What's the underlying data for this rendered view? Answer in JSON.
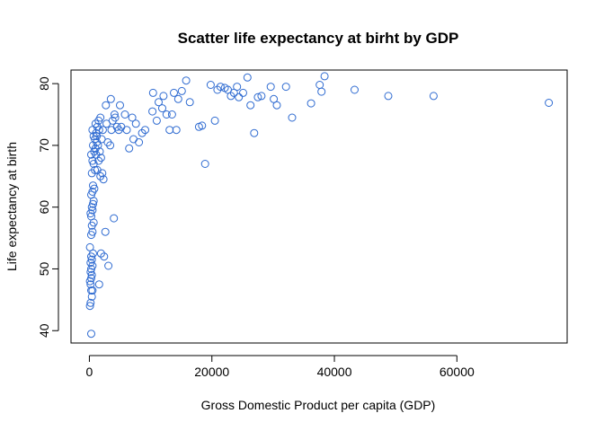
{
  "colors": {
    "point": "#2f6bd1",
    "axis": "#000000",
    "background": "#ffffff"
  },
  "chart_data": {
    "type": "scatter",
    "title": "Scatter life expectancy at birht by GDP",
    "xlabel": "Gross Domestic Product per capita (GDP)",
    "ylabel": "Life expectancy at birth",
    "xlim": [
      -3000,
      78000
    ],
    "ylim": [
      38,
      82.2
    ],
    "xticks": [
      0,
      20000,
      40000,
      60000
    ],
    "yticks": [
      40,
      50,
      60,
      70,
      80
    ],
    "grid": false,
    "legend": "none",
    "marker": "open-circle",
    "points": [
      [
        300,
        39.5
      ],
      [
        100,
        44
      ],
      [
        200,
        44.5
      ],
      [
        400,
        45.5
      ],
      [
        300,
        46.5
      ],
      [
        500,
        46.5
      ],
      [
        200,
        47.5
      ],
      [
        100,
        48
      ],
      [
        300,
        48.5
      ],
      [
        400,
        49
      ],
      [
        200,
        49.5
      ],
      [
        300,
        50
      ],
      [
        500,
        50.5
      ],
      [
        200,
        51
      ],
      [
        400,
        51.5
      ],
      [
        300,
        52
      ],
      [
        600,
        52.5
      ],
      [
        100,
        53.5
      ],
      [
        300,
        55.5
      ],
      [
        500,
        56
      ],
      [
        400,
        57
      ],
      [
        700,
        57.5
      ],
      [
        300,
        58.5
      ],
      [
        200,
        59
      ],
      [
        500,
        59.5
      ],
      [
        400,
        60
      ],
      [
        600,
        60.5
      ],
      [
        700,
        61
      ],
      [
        300,
        62
      ],
      [
        500,
        62.5
      ],
      [
        800,
        63
      ],
      [
        600,
        63.5
      ],
      [
        400,
        65.5
      ],
      [
        900,
        66
      ],
      [
        700,
        67
      ],
      [
        500,
        67.5
      ],
      [
        300,
        68.5
      ],
      [
        800,
        69
      ],
      [
        1000,
        69.5
      ],
      [
        600,
        70
      ],
      [
        1200,
        70.5
      ],
      [
        900,
        71
      ],
      [
        700,
        71.5
      ],
      [
        1100,
        72
      ],
      [
        500,
        72.5
      ],
      [
        1300,
        73
      ],
      [
        1000,
        73.5
      ],
      [
        1500,
        74
      ],
      [
        1800,
        74.5
      ],
      [
        1200,
        71.5
      ],
      [
        1600,
        72.5
      ],
      [
        1400,
        70
      ],
      [
        2000,
        71
      ],
      [
        2200,
        72.5
      ],
      [
        1700,
        69
      ],
      [
        1900,
        68
      ],
      [
        1100,
        68.5
      ],
      [
        1500,
        67.5
      ],
      [
        1300,
        66
      ],
      [
        2100,
        65.5
      ],
      [
        1800,
        65
      ],
      [
        2300,
        64.5
      ],
      [
        1600,
        47.5
      ],
      [
        1900,
        52.5
      ],
      [
        2600,
        56
      ],
      [
        3100,
        50.5
      ],
      [
        2400,
        52
      ],
      [
        4000,
        58.2
      ],
      [
        2800,
        73.5
      ],
      [
        3000,
        70.5
      ],
      [
        3400,
        70
      ],
      [
        3600,
        72.5
      ],
      [
        3800,
        74
      ],
      [
        4200,
        74.5
      ],
      [
        2700,
        76.5
      ],
      [
        3500,
        77.5
      ],
      [
        4100,
        75
      ],
      [
        4500,
        73
      ],
      [
        4800,
        72.5
      ],
      [
        5200,
        73
      ],
      [
        5000,
        76.5
      ],
      [
        5800,
        75
      ],
      [
        6100,
        72.5
      ],
      [
        6500,
        69.5
      ],
      [
        7200,
        71
      ],
      [
        7000,
        74.5
      ],
      [
        7600,
        73.5
      ],
      [
        8100,
        70.5
      ],
      [
        8600,
        72
      ],
      [
        9100,
        72.5
      ],
      [
        10300,
        75.5
      ],
      [
        10400,
        78.5
      ],
      [
        11000,
        74
      ],
      [
        11300,
        77
      ],
      [
        11900,
        76
      ],
      [
        12100,
        78
      ],
      [
        12600,
        75
      ],
      [
        13100,
        72.5
      ],
      [
        13500,
        75
      ],
      [
        13800,
        78.5
      ],
      [
        14200,
        72.5
      ],
      [
        14500,
        77.5
      ],
      [
        15100,
        78.8
      ],
      [
        15800,
        80.5
      ],
      [
        16400,
        77
      ],
      [
        17900,
        73
      ],
      [
        18400,
        73.2
      ],
      [
        18900,
        67
      ],
      [
        19800,
        79.8
      ],
      [
        20500,
        74
      ],
      [
        20900,
        79
      ],
      [
        21400,
        79.5
      ],
      [
        22100,
        79.3
      ],
      [
        22600,
        79
      ],
      [
        23100,
        78
      ],
      [
        23600,
        78.5
      ],
      [
        24100,
        79.5
      ],
      [
        24400,
        77.8
      ],
      [
        25100,
        78.5
      ],
      [
        25800,
        81
      ],
      [
        26300,
        76.5
      ],
      [
        26900,
        72
      ],
      [
        27500,
        77.8
      ],
      [
        28100,
        78
      ],
      [
        29600,
        79.5
      ],
      [
        30100,
        77.5
      ],
      [
        30600,
        76.5
      ],
      [
        32100,
        79.5
      ],
      [
        33100,
        74.5
      ],
      [
        36200,
        76.8
      ],
      [
        37600,
        79.8
      ],
      [
        37900,
        78.7
      ],
      [
        38400,
        81.2
      ],
      [
        43300,
        79
      ],
      [
        48800,
        78
      ],
      [
        56200,
        78
      ],
      [
        75000,
        76.9
      ]
    ]
  }
}
